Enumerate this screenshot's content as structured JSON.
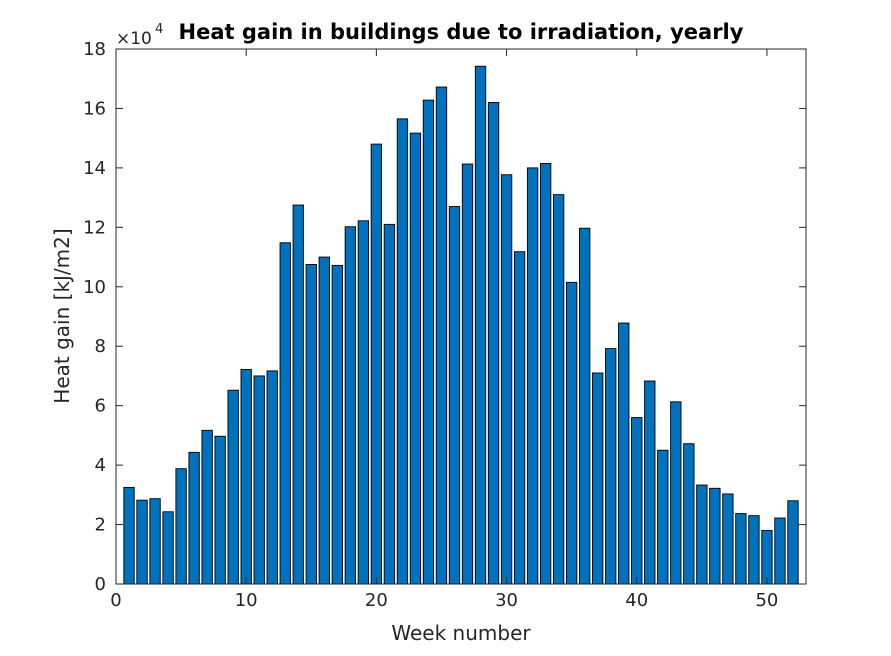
{
  "chart_data": {
    "type": "bar",
    "title": "Heat gain in buildings due to irradiation, yearly",
    "xlabel": "Week number",
    "ylabel": "Heat gain [kJ/m2]",
    "y_multiplier": {
      "base": "×10",
      "exponent": "4"
    },
    "xlim": [
      0,
      53
    ],
    "ylim": [
      0,
      18
    ],
    "xticks": [
      0,
      10,
      20,
      30,
      40,
      50
    ],
    "yticks": [
      0,
      2,
      4,
      6,
      8,
      10,
      12,
      14,
      16,
      18
    ],
    "bar_color": "#0072BD",
    "edge_color": "#000000",
    "grid": false,
    "x": [
      1,
      2,
      3,
      4,
      5,
      6,
      7,
      8,
      9,
      10,
      11,
      12,
      13,
      14,
      15,
      16,
      17,
      18,
      19,
      20,
      21,
      22,
      23,
      24,
      25,
      26,
      27,
      28,
      29,
      30,
      31,
      32,
      33,
      34,
      35,
      36,
      37,
      38,
      39,
      40,
      41,
      42,
      43,
      44,
      45,
      46,
      47,
      48,
      49,
      50,
      51,
      52
    ],
    "values": [
      3.25,
      2.82,
      2.87,
      2.43,
      3.88,
      4.43,
      5.17,
      4.97,
      6.52,
      7.22,
      7.0,
      7.17,
      11.48,
      12.75,
      10.75,
      11.0,
      10.72,
      12.02,
      12.22,
      14.8,
      12.1,
      15.65,
      15.17,
      16.28,
      16.72,
      12.7,
      14.13,
      17.42,
      16.2,
      13.77,
      11.18,
      14.0,
      14.15,
      13.1,
      10.15,
      11.97,
      7.1,
      7.92,
      8.78,
      5.6,
      6.83,
      4.5,
      6.13,
      4.72,
      3.33,
      3.22,
      3.03,
      2.37,
      2.3,
      1.8,
      2.22,
      2.8
    ]
  }
}
